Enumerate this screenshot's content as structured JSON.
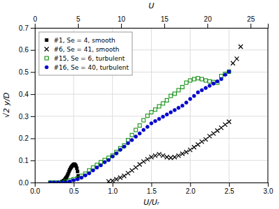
{
  "chart_data": {
    "type": "scatter",
    "xlabel": "U/Uᵣ",
    "ylabel": "√2 y/D",
    "x2label": "U",
    "xlim": [
      0,
      3
    ],
    "ylim": [
      0,
      0.7
    ],
    "x2lim": [
      0,
      27
    ],
    "xticks": [
      {
        "value": 0,
        "label": "0.0"
      },
      0.5,
      {
        "value": 1.0,
        "label": "1.0"
      },
      1.5,
      {
        "value": 2.0,
        "label": "2.0"
      },
      2.5,
      {
        "value": 3.0,
        "label": "3.0"
      }
    ],
    "x2ticks": [
      0,
      5,
      10,
      15,
      20,
      25
    ],
    "yticks": [
      {
        "value": 0.0,
        "label": "0.0"
      },
      0.1,
      0.2,
      0.3,
      0.4,
      0.5,
      0.6,
      0.7
    ],
    "grid": true,
    "legend": "upper left",
    "series": [
      {
        "name": "#1, Se = 4, smooth",
        "color": "#000000",
        "marker": "square",
        "x": [
          0.35,
          0.37,
          0.38,
          0.39,
          0.4,
          0.41,
          0.42,
          0.43,
          0.44,
          0.45,
          0.46,
          0.47,
          0.48,
          0.49,
          0.5,
          0.51,
          0.52,
          0.53,
          0.54,
          0.55,
          0.56
        ],
        "values": [
          0.005,
          0.008,
          0.01,
          0.015,
          0.02,
          0.025,
          0.032,
          0.04,
          0.05,
          0.058,
          0.065,
          0.07,
          0.075,
          0.078,
          0.082,
          0.083,
          0.08,
          0.075,
          0.065,
          0.05,
          0.03
        ]
      },
      {
        "name": "#6, Se = 41, smooth",
        "color": "#000000",
        "marker": "x",
        "x": [
          0.95,
          1.0,
          1.05,
          1.1,
          1.15,
          1.2,
          1.25,
          1.3,
          1.35,
          1.4,
          1.45,
          1.5,
          1.55,
          1.6,
          1.65,
          1.7,
          1.75,
          1.8,
          1.85,
          1.9,
          1.95,
          2.0,
          2.05,
          2.1,
          2.15,
          2.2,
          2.25,
          2.3,
          2.35,
          2.4,
          2.45,
          2.5,
          2.55,
          2.6,
          2.65
        ],
        "values": [
          0.005,
          0.008,
          0.015,
          0.022,
          0.03,
          0.042,
          0.055,
          0.068,
          0.082,
          0.095,
          0.105,
          0.115,
          0.122,
          0.128,
          0.122,
          0.115,
          0.112,
          0.115,
          0.122,
          0.13,
          0.138,
          0.148,
          0.16,
          0.172,
          0.185,
          0.195,
          0.21,
          0.222,
          0.235,
          0.248,
          0.262,
          0.275,
          0.54,
          0.56,
          0.615
        ]
      },
      {
        "name": "#15, Se = 6, turbulent",
        "color": "#008800",
        "marker": "open-square",
        "x": [
          0.2,
          0.25,
          0.3,
          0.35,
          0.4,
          0.45,
          0.5,
          0.55,
          0.6,
          0.65,
          0.7,
          0.75,
          0.8,
          0.85,
          0.9,
          0.95,
          1.0,
          1.05,
          1.1,
          1.15,
          1.2,
          1.25,
          1.3,
          1.35,
          1.4,
          1.45,
          1.5,
          1.55,
          1.6,
          1.65,
          1.7,
          1.75,
          1.8,
          1.85,
          1.9,
          1.95,
          2.0,
          2.05,
          2.1,
          2.15,
          2.2,
          2.25,
          2.3,
          2.35,
          2.4,
          2.45,
          2.5
        ],
        "values": [
          0.0,
          0.0,
          0.0,
          0.0,
          0.005,
          0.01,
          0.015,
          0.02,
          0.03,
          0.04,
          0.055,
          0.068,
          0.08,
          0.092,
          0.102,
          0.112,
          0.122,
          0.138,
          0.155,
          0.168,
          0.192,
          0.215,
          0.238,
          0.258,
          0.282,
          0.302,
          0.318,
          0.33,
          0.345,
          0.358,
          0.372,
          0.392,
          0.402,
          0.418,
          0.432,
          0.452,
          0.462,
          0.468,
          0.472,
          0.468,
          0.462,
          0.458,
          0.455,
          0.452,
          0.482,
          0.492,
          0.502
        ]
      },
      {
        "name": "#16, Se = 40, turbulent",
        "color": "#0000cc",
        "marker": "circle",
        "x": [
          0.2,
          0.25,
          0.3,
          0.35,
          0.4,
          0.45,
          0.5,
          0.55,
          0.6,
          0.65,
          0.7,
          0.75,
          0.8,
          0.85,
          0.9,
          0.95,
          1.0,
          1.05,
          1.1,
          1.15,
          1.2,
          1.25,
          1.3,
          1.35,
          1.4,
          1.45,
          1.5,
          1.55,
          1.6,
          1.65,
          1.7,
          1.75,
          1.8,
          1.85,
          1.9,
          1.95,
          2.0,
          2.05,
          2.1,
          2.15,
          2.2,
          2.25,
          2.3,
          2.35,
          2.4,
          2.45,
          2.5
        ],
        "values": [
          0.0,
          0.0,
          0.0,
          0.0,
          0.0,
          0.005,
          0.01,
          0.015,
          0.022,
          0.032,
          0.042,
          0.055,
          0.068,
          0.078,
          0.092,
          0.102,
          0.118,
          0.132,
          0.148,
          0.162,
          0.178,
          0.192,
          0.208,
          0.222,
          0.238,
          0.252,
          0.268,
          0.278,
          0.288,
          0.298,
          0.308,
          0.318,
          0.328,
          0.338,
          0.348,
          0.362,
          0.378,
          0.392,
          0.408,
          0.418,
          0.428,
          0.438,
          0.448,
          0.458,
          0.468,
          0.488,
          0.502
        ]
      }
    ]
  }
}
